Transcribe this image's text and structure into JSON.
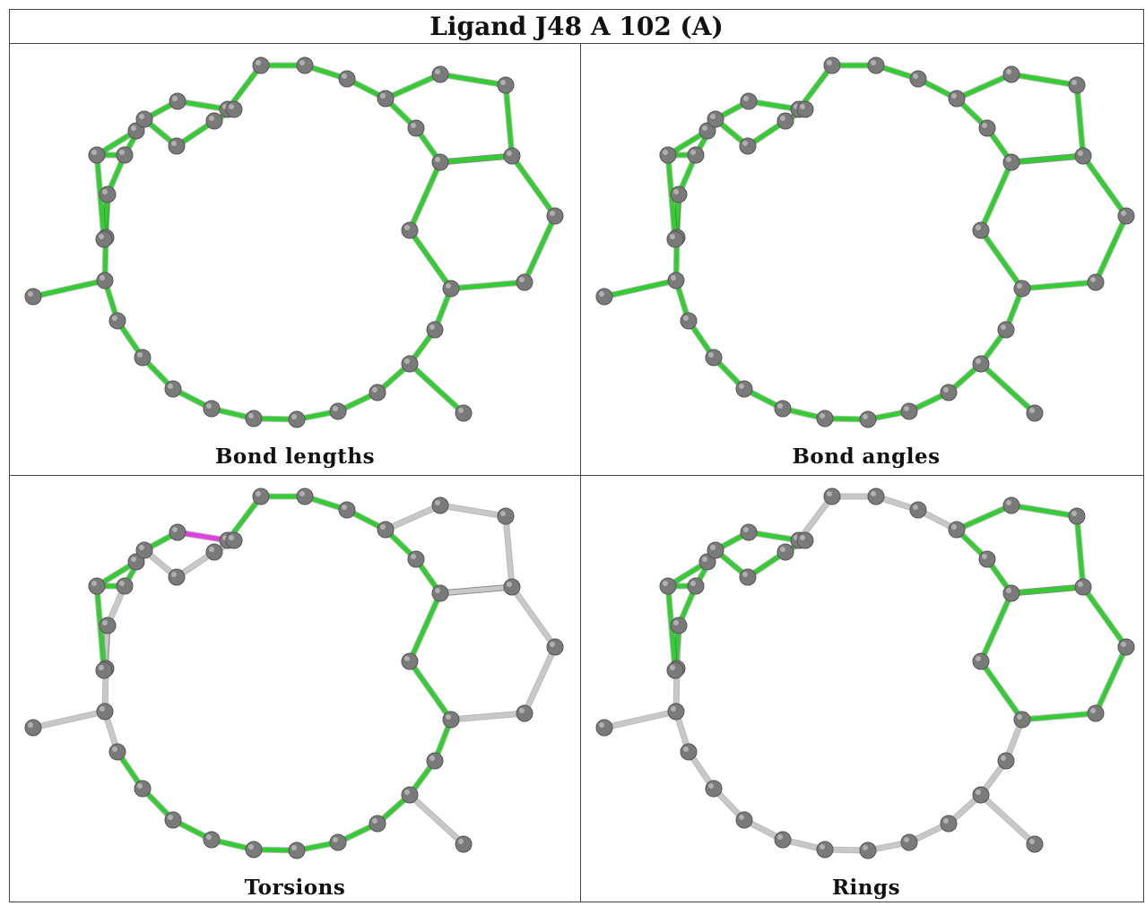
{
  "title": "Ligand J48 A 102 (A)",
  "colors": {
    "green": "#33cc33",
    "grey": "#c8c8c8",
    "magenta": "#e040e0",
    "atom": "#7a7a7a"
  },
  "panels": [
    {
      "caption": "Bond lengths",
      "default": "green",
      "overrides": {}
    },
    {
      "caption": "Bond angles",
      "default": "green",
      "overrides": {}
    },
    {
      "caption": "Torsions",
      "default": "grey",
      "greenChain": [
        4,
        5,
        6,
        7,
        8,
        9,
        10,
        11,
        12,
        13,
        14,
        15,
        16,
        17,
        18,
        19,
        20,
        21,
        22,
        23,
        24,
        25,
        26,
        27,
        28
      ],
      "magentaBonds": [
        [
          5,
          6
        ],
        [
          24,
          25
        ]
      ]
    },
    {
      "caption": "Rings",
      "default": "grey",
      "ringGreen": true
    }
  ]
}
